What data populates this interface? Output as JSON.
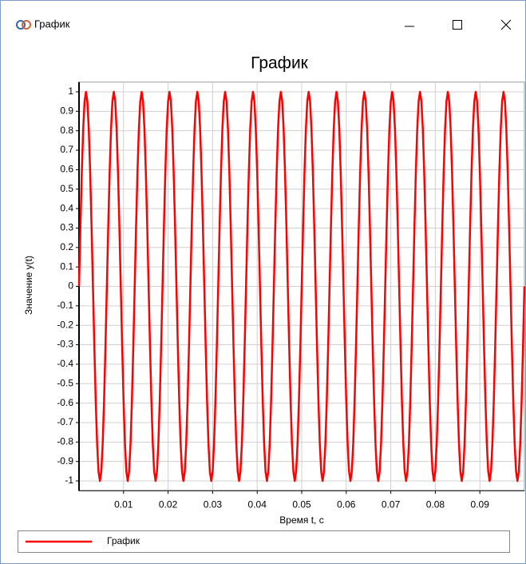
{
  "window": {
    "title": "График"
  },
  "chart_data": {
    "type": "line",
    "title": "График",
    "x_label": "Время t, с",
    "y_label": "Значение y(t)",
    "x": [
      0,
      0.0003125,
      0.000625,
      0.0009375,
      0.00125,
      0.0015625,
      0.001875,
      0.0021875,
      0.0025,
      0.0028125,
      0.003125,
      0.0034375,
      0.00375,
      0.0040625,
      0.004375,
      0.0046875,
      0.005,
      0.0053125,
      0.005625,
      0.0059375,
      0.00625,
      0.0065625,
      0.006875,
      0.0071875,
      0.0075,
      0.0078125,
      0.008125,
      0.0084375,
      0.00875,
      0.0090625,
      0.009375,
      0.0096875,
      0.01,
      0.0103125,
      0.010625,
      0.0109375,
      0.01125,
      0.0115625,
      0.011875,
      0.0121875,
      0.0125,
      0.0128125,
      0.013125,
      0.0134375,
      0.01375,
      0.0140625,
      0.014375,
      0.0146875,
      0.015,
      0.0153125,
      0.015625,
      0.0159375,
      0.01625,
      0.0165625,
      0.016875,
      0.0171875,
      0.0175,
      0.0178125,
      0.018125,
      0.0184375,
      0.01875,
      0.0190625,
      0.019375,
      0.0196875,
      0.02,
      0.0203125,
      0.020625,
      0.0209375,
      0.02125,
      0.0215625,
      0.021875,
      0.0221875,
      0.0225,
      0.0228125,
      0.023125,
      0.0234375,
      0.02375,
      0.0240625,
      0.024375,
      0.0246875,
      0.025,
      0.0253125,
      0.025625,
      0.0259375,
      0.02625,
      0.0265625,
      0.026875,
      0.0271875,
      0.0275,
      0.0278125,
      0.028125,
      0.0284375,
      0.02875,
      0.0290625,
      0.029375,
      0.0296875,
      0.03,
      0.0303125,
      0.030625,
      0.0309375,
      0.03125,
      0.0315625,
      0.031875,
      0.0321875,
      0.0325,
      0.0328125,
      0.033125,
      0.0334375,
      0.03375,
      0.0340625,
      0.034375,
      0.0346875,
      0.035,
      0.0353125,
      0.035625,
      0.0359375,
      0.03625,
      0.0365625,
      0.036875,
      0.0371875,
      0.0375,
      0.0378125,
      0.038125,
      0.0384375,
      0.03875,
      0.0390625,
      0.039375,
      0.0396875,
      0.04,
      0.0403125,
      0.040625,
      0.0409375,
      0.04125,
      0.0415625,
      0.041875,
      0.0421875,
      0.0425,
      0.0428125,
      0.043125,
      0.0434375,
      0.04375,
      0.0440625,
      0.044375,
      0.0446875,
      0.045,
      0.0453125,
      0.045625,
      0.0459375,
      0.04625,
      0.0465625,
      0.046875,
      0.0471875,
      0.0475,
      0.0478125,
      0.048125,
      0.0484375,
      0.04875,
      0.0490625,
      0.049375,
      0.0496875,
      0.05,
      0.0503125,
      0.050625,
      0.0509375,
      0.05125,
      0.0515625,
      0.051875,
      0.0521875,
      0.0525,
      0.0528125,
      0.053125,
      0.0534375,
      0.05375,
      0.0540625,
      0.054375,
      0.0546875,
      0.055,
      0.0553125,
      0.055625,
      0.0559375,
      0.05625,
      0.0565625,
      0.056875,
      0.0571875,
      0.0575,
      0.0578125,
      0.058125,
      0.0584375,
      0.05875,
      0.0590625,
      0.059375,
      0.0596875,
      0.06,
      0.0603125,
      0.060625,
      0.0609375,
      0.06125,
      0.0615625,
      0.061875,
      0.0621875,
      0.0625,
      0.0628125,
      0.063125,
      0.0634375,
      0.06375,
      0.0640625,
      0.064375,
      0.0646875,
      0.065,
      0.0653125,
      0.065625,
      0.0659375,
      0.06625,
      0.0665625,
      0.066875,
      0.0671875,
      0.0675,
      0.0678125,
      0.068125,
      0.0684375,
      0.06875,
      0.0690625,
      0.069375,
      0.0696875,
      0.07,
      0.0703125,
      0.070625,
      0.0709375,
      0.07125,
      0.0715625,
      0.071875,
      0.0721875,
      0.0725,
      0.0728125,
      0.073125,
      0.0734375,
      0.07375,
      0.0740625,
      0.074375,
      0.0746875,
      0.075,
      0.0753125,
      0.075625,
      0.0759375,
      0.07625,
      0.0765625,
      0.076875,
      0.0771875,
      0.0775,
      0.0778125,
      0.078125,
      0.0784375,
      0.07875,
      0.0790625,
      0.079375,
      0.0796875,
      0.08,
      0.0803125,
      0.080625,
      0.0809375,
      0.08125,
      0.0815625,
      0.081875,
      0.0821875,
      0.0825,
      0.0828125,
      0.083125,
      0.0834375,
      0.08375,
      0.0840625,
      0.084375,
      0.0846875,
      0.085,
      0.0853125,
      0.085625,
      0.0859375,
      0.08625,
      0.0865625,
      0.086875,
      0.0871875,
      0.0875,
      0.0878125,
      0.088125,
      0.0884375,
      0.08875,
      0.0890625,
      0.089375,
      0.0896875,
      0.09,
      0.0903125,
      0.090625,
      0.0909375,
      0.09125,
      0.0915625,
      0.091875,
      0.0921875,
      0.0925,
      0.0928125,
      0.093125,
      0.0934375,
      0.09375,
      0.0940625,
      0.094375,
      0.0946875,
      0.095,
      0.0953125,
      0.095625,
      0.0959375,
      0.09625,
      0.0965625,
      0.096875,
      0.0971875,
      0.0975,
      0.0978125,
      0.098125,
      0.0984375,
      0.09875,
      0.0990625,
      0.099375,
      0.0996875,
      0.1
    ],
    "series": [
      {
        "name": "График",
        "color": "#ff0000",
        "values": [
          0,
          0.309,
          0.588,
          0.809,
          0.951,
          1,
          0.951,
          0.809,
          0.588,
          0.309,
          0,
          -0.309,
          -0.588,
          -0.809,
          -0.951,
          -1,
          -0.951,
          -0.809,
          -0.588,
          -0.309,
          0,
          0.309,
          0.588,
          0.809,
          0.951,
          1,
          0.951,
          0.809,
          0.588,
          0.309,
          0,
          -0.309,
          -0.588,
          -0.809,
          -0.951,
          -1,
          -0.951,
          -0.809,
          -0.588,
          -0.309,
          0,
          0.309,
          0.588,
          0.809,
          0.951,
          1,
          0.951,
          0.809,
          0.588,
          0.309,
          0,
          -0.309,
          -0.588,
          -0.809,
          -0.951,
          -1,
          -0.951,
          -0.809,
          -0.588,
          -0.309,
          0,
          0.309,
          0.588,
          0.809,
          0.951,
          1,
          0.951,
          0.809,
          0.588,
          0.309,
          0,
          -0.309,
          -0.588,
          -0.809,
          -0.951,
          -1,
          -0.951,
          -0.809,
          -0.588,
          -0.309,
          0,
          0.309,
          0.588,
          0.809,
          0.951,
          1,
          0.951,
          0.809,
          0.588,
          0.309,
          0,
          -0.309,
          -0.588,
          -0.809,
          -0.951,
          -1,
          -0.951,
          -0.809,
          -0.588,
          -0.309,
          0,
          0.309,
          0.588,
          0.809,
          0.951,
          1,
          0.951,
          0.809,
          0.588,
          0.309,
          0,
          -0.309,
          -0.588,
          -0.809,
          -0.951,
          -1,
          -0.951,
          -0.809,
          -0.588,
          -0.309,
          0,
          0.309,
          0.588,
          0.809,
          0.951,
          1,
          0.951,
          0.809,
          0.588,
          0.309,
          0,
          -0.309,
          -0.588,
          -0.809,
          -0.951,
          -1,
          -0.951,
          -0.809,
          -0.588,
          -0.309,
          0,
          0.309,
          0.588,
          0.809,
          0.951,
          1,
          0.951,
          0.809,
          0.588,
          0.309,
          0,
          -0.309,
          -0.588,
          -0.809,
          -0.951,
          -1,
          -0.951,
          -0.809,
          -0.588,
          -0.309,
          0,
          0.309,
          0.588,
          0.809,
          0.951,
          1,
          0.951,
          0.809,
          0.588,
          0.309,
          0,
          -0.309,
          -0.588,
          -0.809,
          -0.951,
          -1,
          -0.951,
          -0.809,
          -0.588,
          -0.309,
          0,
          0.309,
          0.588,
          0.809,
          0.951,
          1,
          0.951,
          0.809,
          0.588,
          0.309,
          0,
          -0.309,
          -0.588,
          -0.809,
          -0.951,
          -1,
          -0.951,
          -0.809,
          -0.588,
          -0.309,
          0,
          0.309,
          0.588,
          0.809,
          0.951,
          1,
          0.951,
          0.809,
          0.588,
          0.309,
          0,
          -0.309,
          -0.588,
          -0.809,
          -0.951,
          -1,
          -0.951,
          -0.809,
          -0.588,
          -0.309,
          0,
          0.309,
          0.588,
          0.809,
          0.951,
          1,
          0.951,
          0.809,
          0.588,
          0.309,
          0,
          -0.309,
          -0.588,
          -0.809,
          -0.951,
          -1,
          -0.951,
          -0.809,
          -0.588,
          -0.309,
          0,
          0.309,
          0.588,
          0.809,
          0.951,
          1,
          0.951,
          0.809,
          0.588,
          0.309,
          0,
          -0.309,
          -0.588,
          -0.809,
          -0.951,
          -1,
          -0.951,
          -0.809,
          -0.588,
          -0.309,
          0,
          0.309,
          0.588,
          0.809,
          0.951,
          1,
          0.951,
          0.809,
          0.588,
          0.309,
          0,
          -0.309,
          -0.588,
          -0.809,
          -0.951,
          -1,
          -0.951,
          -0.809,
          -0.588,
          -0.309,
          0,
          0.309,
          0.588,
          0.809,
          0.951,
          1,
          0.951,
          0.809,
          0.588,
          0.309,
          0,
          -0.309,
          -0.588,
          -0.809,
          -0.951,
          -1,
          -0.951,
          -0.809,
          -0.588,
          -0.309,
          0,
          0.309,
          0.588,
          0.809,
          0.951,
          1,
          0.951,
          0.809,
          0.588,
          0.309,
          0,
          -0.309,
          -0.588,
          -0.809,
          -0.951,
          -1,
          -0.951,
          -0.809,
          -0.588,
          -0.309,
          0
        ]
      }
    ],
    "xlim": [
      0,
      0.1
    ],
    "xticks": [
      0.01,
      0.02,
      0.03,
      0.04,
      0.05,
      0.06,
      0.07,
      0.08,
      0.09
    ],
    "ylim": [
      -1.05,
      1.05
    ],
    "yticks": [
      -1,
      -0.9,
      -0.8,
      -0.7,
      -0.6,
      -0.5,
      -0.4,
      -0.3,
      -0.2,
      -0.1,
      0,
      0.1,
      0.2,
      0.3,
      0.4,
      0.5,
      0.6,
      0.7,
      0.8,
      0.9,
      1
    ],
    "grid": true,
    "legend": "bottom"
  }
}
